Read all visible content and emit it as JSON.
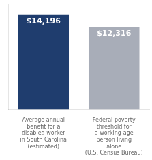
{
  "chart_data": {
    "type": "bar",
    "categories": [
      "Average annual\nbenefit for a\ndisabled worker\nin South Carolina\n(estimated)",
      "Federal poverty\nthreshold for\na working-age\nperson living\nalone\n(U.S. Census Bureau)"
    ],
    "values": [
      14196,
      12316
    ],
    "value_labels": [
      "$14,196",
      "$12,316"
    ],
    "colors": [
      "#1f3d6e",
      "#a8adb8"
    ],
    "ylim": [
      0,
      15800
    ],
    "grid": false,
    "data_labels": true,
    "tick_labels": "x"
  }
}
